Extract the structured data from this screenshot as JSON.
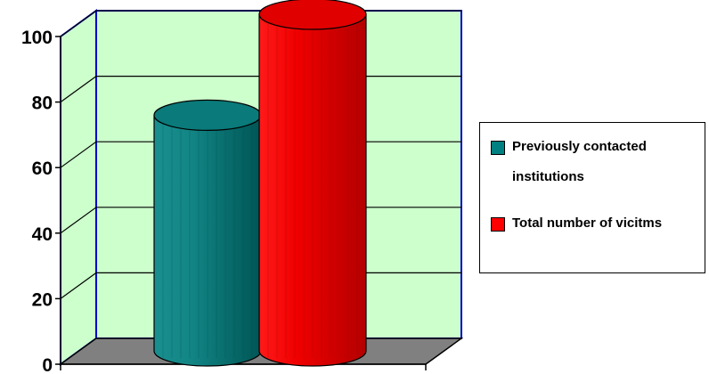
{
  "chart_data": {
    "type": "bar",
    "style": "3d-cylinder",
    "categories": [
      ""
    ],
    "series": [
      {
        "name": "Previously contacted institutions",
        "values": [
          70
        ],
        "color": "#008080"
      },
      {
        "name": "Total number of vicitms",
        "values": [
          100
        ],
        "color": "#ff0000"
      }
    ],
    "title": "",
    "xlabel": "",
    "ylabel": "",
    "ylim": [
      0,
      100
    ],
    "yticks": [
      "0",
      "20",
      "40",
      "60",
      "80",
      "100"
    ],
    "grid": true,
    "wall_color": "#ccffcc",
    "floor_color": "#808080",
    "wall_border_color": "#0000cc",
    "legend_position": "right"
  }
}
